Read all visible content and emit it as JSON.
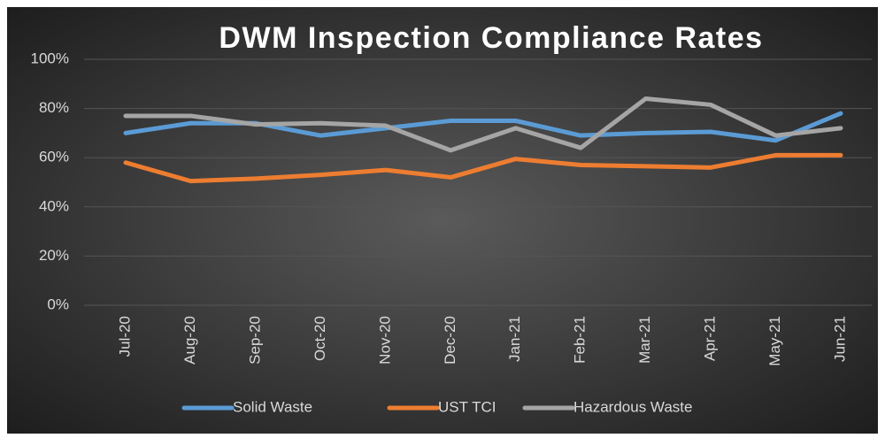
{
  "chart_data": {
    "type": "line",
    "title": "DWM Inspection Compliance Rates",
    "categories": [
      "Jul-20",
      "Aug-20",
      "Sep-20",
      "Oct-20",
      "Nov-20",
      "Dec-20",
      "Jan-21",
      "Feb-21",
      "Mar-21",
      "Apr-21",
      "May-21",
      "Jun-21"
    ],
    "series": [
      {
        "name": "Solid Waste",
        "color": "#5b9bd5",
        "values": [
          70,
          74,
          74,
          69,
          72,
          75,
          75,
          69,
          70,
          70.5,
          67,
          78
        ]
      },
      {
        "name": "UST TCI",
        "color": "#ed7d31",
        "values": [
          58,
          50.5,
          51.5,
          53,
          55,
          52,
          59.5,
          57,
          56.5,
          56,
          61,
          61
        ]
      },
      {
        "name": "Hazardous Waste",
        "color": "#a5a5a5",
        "values": [
          77,
          77,
          73.5,
          74,
          73,
          63,
          72,
          64,
          84,
          81.5,
          69,
          72
        ]
      }
    ],
    "ylim": [
      0,
      100
    ],
    "yticks": [
      {
        "value": 0,
        "label": "0%"
      },
      {
        "value": 20,
        "label": "20%"
      },
      {
        "value": 40,
        "label": "40%"
      },
      {
        "value": 60,
        "label": "60%"
      },
      {
        "value": 80,
        "label": "80%"
      },
      {
        "value": 100,
        "label": "100%"
      }
    ],
    "grid": true,
    "legend": "bottom"
  }
}
